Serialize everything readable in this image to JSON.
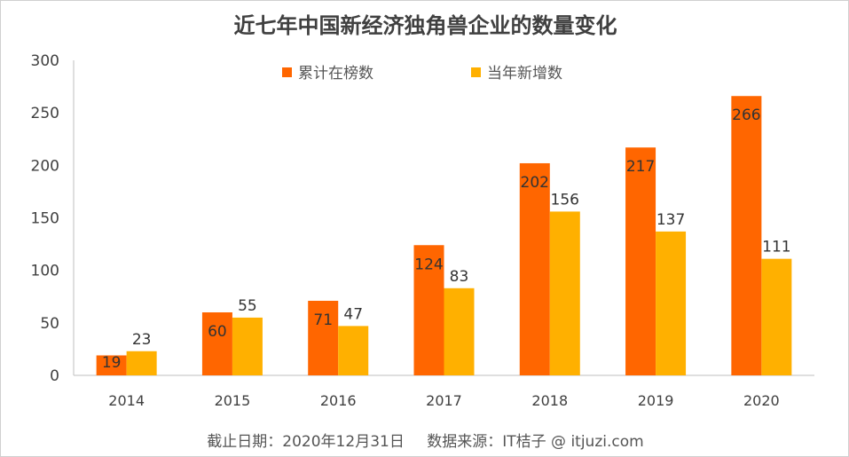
{
  "chart_data": {
    "type": "bar",
    "title": "近七年中国新经济独角兽企业的数量变化",
    "categories": [
      "2014",
      "2015",
      "2016",
      "2017",
      "2018",
      "2019",
      "2020"
    ],
    "series": [
      {
        "name": "累计在榜数",
        "values": [
          19,
          60,
          71,
          124,
          202,
          217,
          266
        ],
        "color": "#ff6600"
      },
      {
        "name": "当年新增数",
        "values": [
          23,
          55,
          47,
          83,
          156,
          137,
          111
        ],
        "color": "#ffb000"
      }
    ],
    "ylim": [
      0,
      300
    ],
    "yticks": [
      0,
      50,
      100,
      150,
      200,
      250,
      300
    ],
    "xlabel": "",
    "ylabel": "",
    "grid": false,
    "legend_position": "top"
  },
  "footer": {
    "date_note": "截止日期：2020年12月31日",
    "source_note": "数据来源：IT桔子 @ itjuzi.com"
  }
}
